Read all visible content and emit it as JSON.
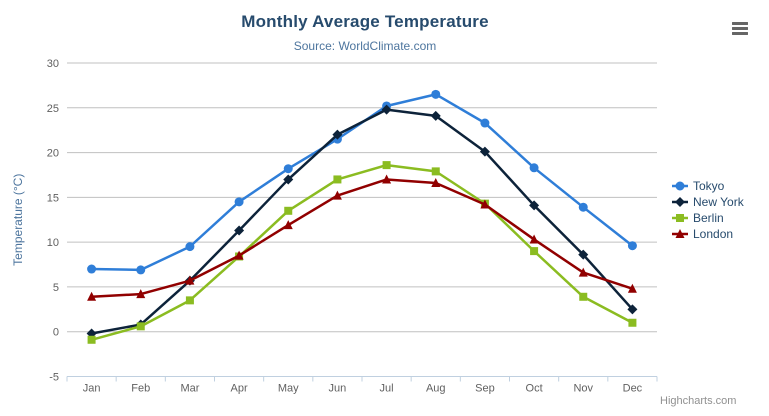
{
  "chart_data": {
    "type": "line",
    "title": "Monthly Average Temperature",
    "subtitle": "Source: WorldClimate.com",
    "categories": [
      "Jan",
      "Feb",
      "Mar",
      "Apr",
      "May",
      "Jun",
      "Jul",
      "Aug",
      "Sep",
      "Oct",
      "Nov",
      "Dec"
    ],
    "xlabel": "",
    "ylabel": "Temperature (°C)",
    "ylim": [
      -5,
      30
    ],
    "ytick_interval": 5,
    "grid": true,
    "legend_position": "right",
    "series": [
      {
        "name": "Tokyo",
        "color": "#2f7ed8",
        "marker": "circle",
        "values": [
          7.0,
          6.9,
          9.5,
          14.5,
          18.2,
          21.5,
          25.2,
          26.5,
          23.3,
          18.3,
          13.9,
          9.6
        ]
      },
      {
        "name": "New York",
        "color": "#0d233a",
        "marker": "diamond",
        "values": [
          -0.2,
          0.8,
          5.7,
          11.3,
          17.0,
          22.0,
          24.8,
          24.1,
          20.1,
          14.1,
          8.6,
          2.5
        ]
      },
      {
        "name": "Berlin",
        "color": "#8bbc21",
        "marker": "square",
        "values": [
          -0.9,
          0.6,
          3.5,
          8.4,
          13.5,
          17.0,
          18.6,
          17.9,
          14.3,
          9.0,
          3.9,
          1.0
        ]
      },
      {
        "name": "London",
        "color": "#910000",
        "marker": "triangle",
        "values": [
          3.9,
          4.2,
          5.7,
          8.5,
          11.9,
          15.2,
          17.0,
          16.6,
          14.2,
          10.3,
          6.6,
          4.8
        ]
      }
    ]
  },
  "colors": {
    "title": "#274b6d",
    "subtitle": "#4d759e",
    "axis_title": "#4d759e",
    "tick_label": "#606060",
    "grid_line": "#c0c0c0",
    "axis_line": "#c0d0e0",
    "legend_text": "#274b6d",
    "credit": "#909090",
    "context_button": "#666666",
    "background": "#ffffff"
  },
  "icons": {
    "export_menu": "hamburger-icon"
  },
  "credit": {
    "label": "Highcharts.com"
  }
}
